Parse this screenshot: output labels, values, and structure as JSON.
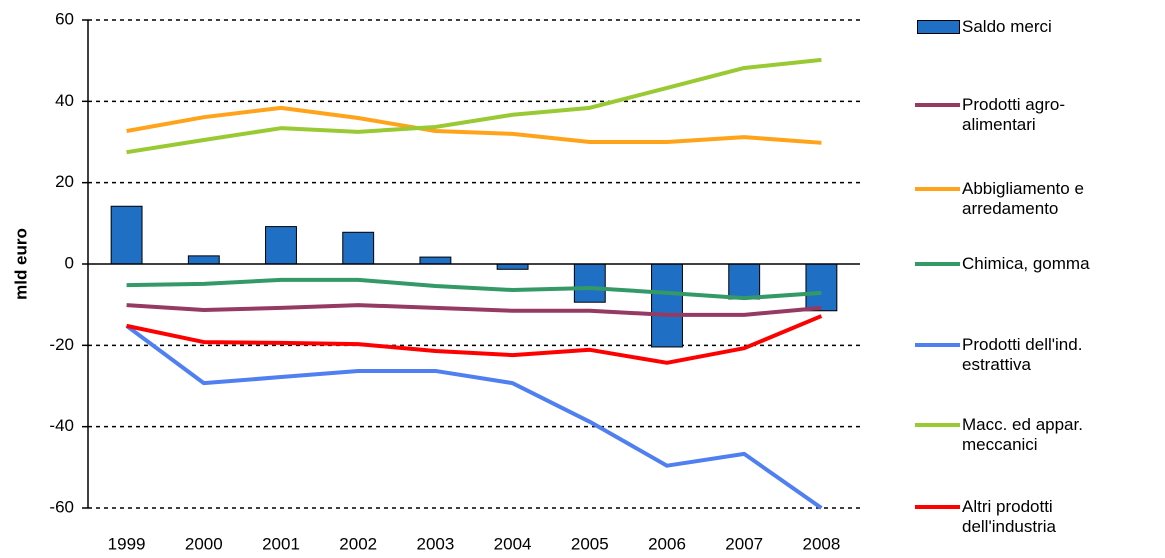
{
  "chart_data": {
    "type": "bar-line",
    "ylabel": "mld euro",
    "categories": [
      "1999",
      "2000",
      "2001",
      "2002",
      "2003",
      "2004",
      "2005",
      "2006",
      "2007",
      "2008"
    ],
    "ylim": [
      -60,
      60
    ],
    "yticks": [
      -60,
      -40,
      -20,
      0,
      20,
      40,
      60
    ],
    "grid": true,
    "legend": "right",
    "series": [
      {
        "name": "Saldo merci",
        "type": "bar",
        "color": "#1f6fc5",
        "values": [
          14.2,
          2,
          9.2,
          7.8,
          1.7,
          -1.3,
          -9.4,
          -20.4,
          -8.6,
          -11.5
        ]
      },
      {
        "name": "Prodotti agro-\nalimentari",
        "type": "line",
        "color": "#953a62",
        "values": [
          -10.1,
          -11.3,
          -10.8,
          -10.1,
          -10.8,
          -11.5,
          -11.5,
          -12.5,
          -12.5,
          -10.8
        ]
      },
      {
        "name": "Abbigliamento e\narredamento",
        "type": "line",
        "color": "#ffa31a",
        "values": [
          32.7,
          36.1,
          38.4,
          35.9,
          32.7,
          32,
          30,
          30,
          31.2,
          29.8
        ]
      },
      {
        "name": "Chimica, gomma",
        "type": "line",
        "color": "#339966",
        "values": [
          -5.2,
          -4.9,
          -3.9,
          -3.9,
          -5.4,
          -6.4,
          -5.9,
          -7.1,
          -8.4,
          -7.1
        ]
      },
      {
        "name": "Prodotti dell'ind.\nestrattiva",
        "type": "line",
        "color": "#4f7ff0",
        "values": [
          -15.2,
          -29.3,
          -27.8,
          -26.3,
          -26.3,
          -29.3,
          -38.8,
          -49.6,
          -46.7,
          -60
        ]
      },
      {
        "name": "Macc. ed appar.\nmeccanici",
        "type": "line",
        "color": "#99c933",
        "values": [
          27.5,
          30.5,
          33.4,
          32.5,
          33.7,
          36.7,
          38.4,
          43.3,
          48.2,
          50.2
        ]
      },
      {
        "name": "Altri prodotti\ndell'industria",
        "type": "line",
        "color": "#ff0000",
        "values": [
          -15.2,
          -19.2,
          -19.4,
          -19.7,
          -21.4,
          -22.4,
          -21.1,
          -24.3,
          -20.7,
          -12.8
        ]
      }
    ]
  }
}
